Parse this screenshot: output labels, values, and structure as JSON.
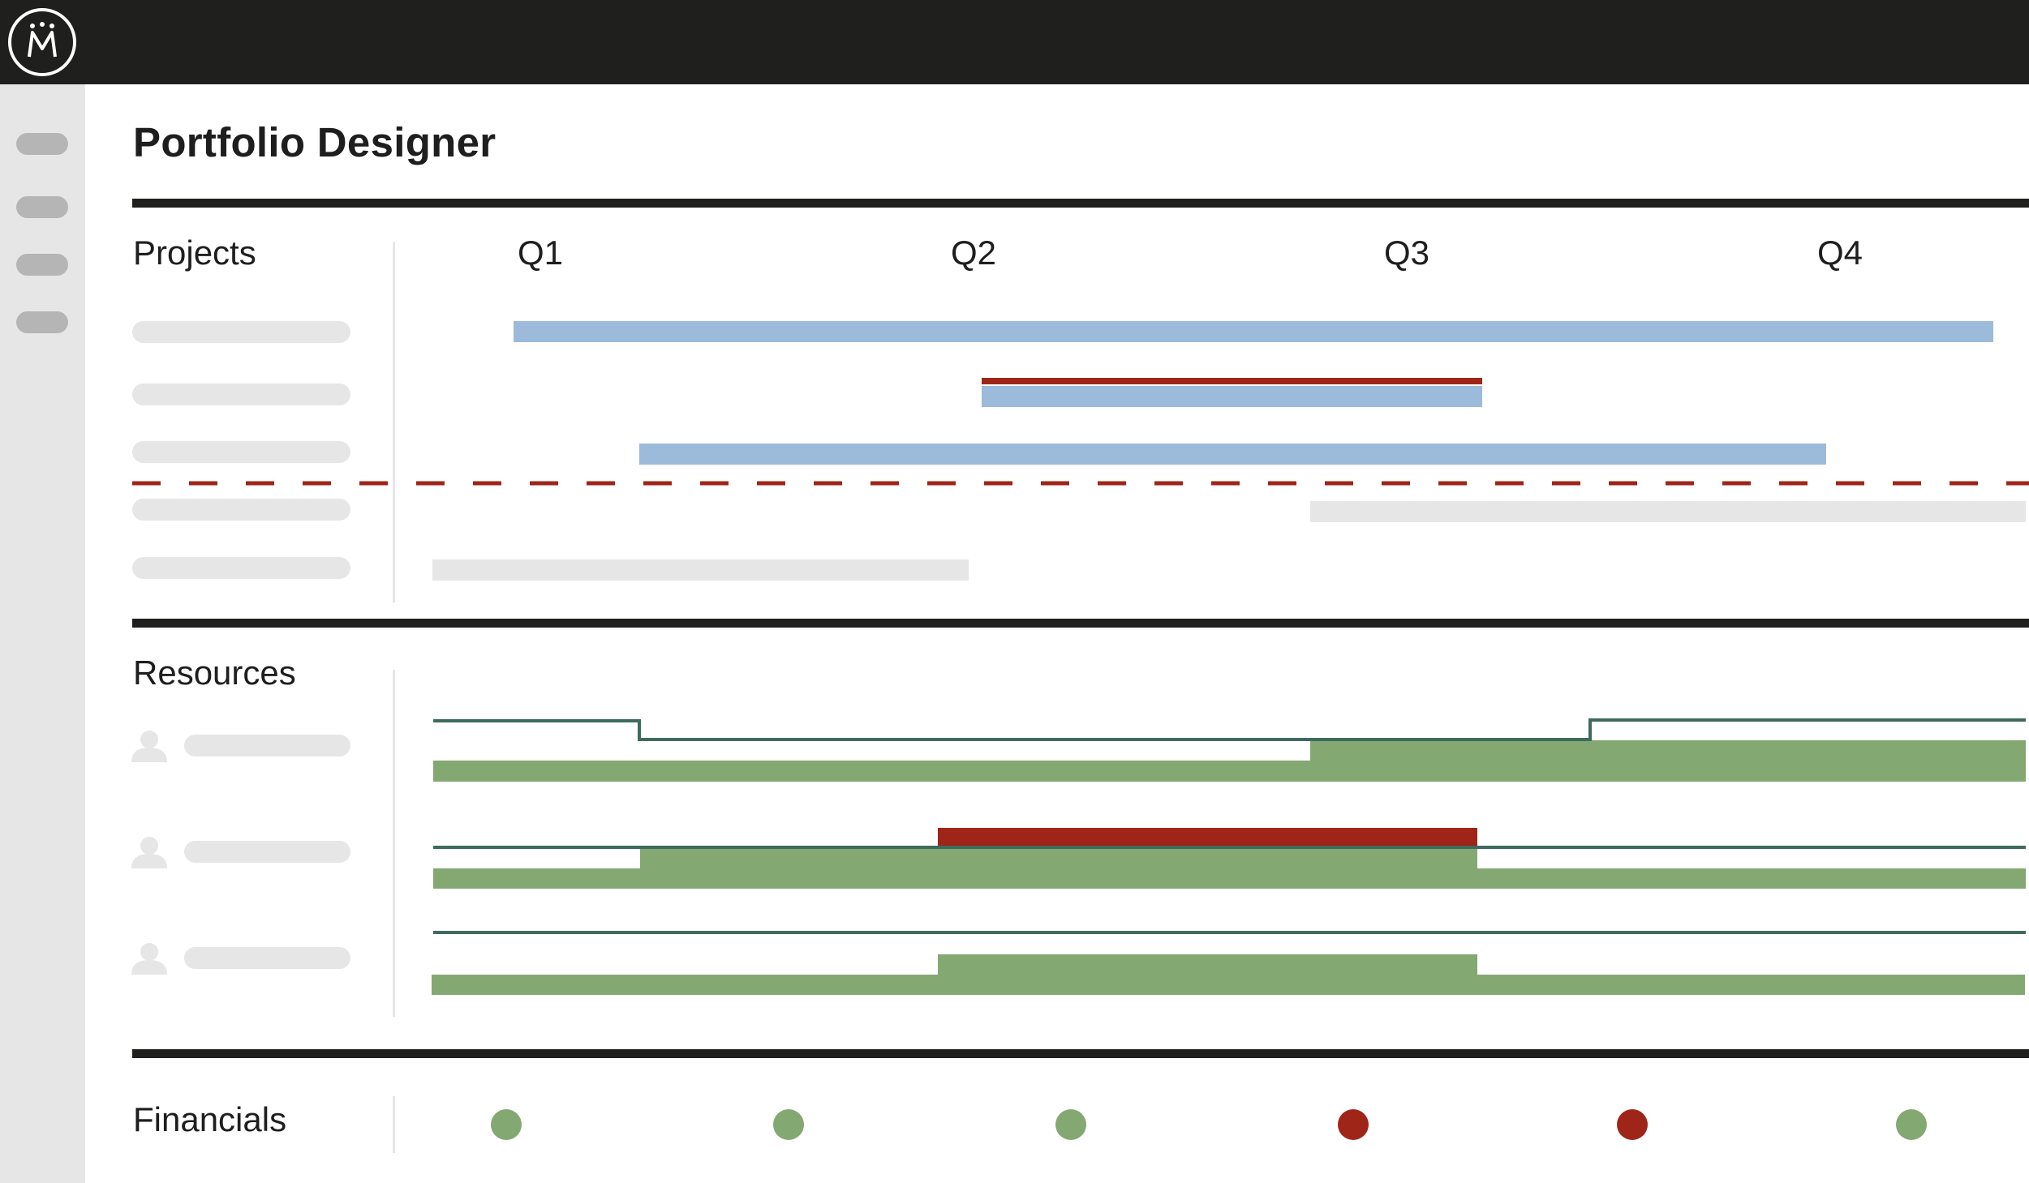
{
  "app": {
    "page_title": "Portfolio Designer",
    "logo_icon": "crown-logo-icon"
  },
  "sidebar": {
    "items": [
      {
        "icon": "nav-placeholder"
      },
      {
        "icon": "nav-placeholder"
      },
      {
        "icon": "nav-placeholder"
      },
      {
        "icon": "nav-placeholder"
      }
    ]
  },
  "sections": {
    "projects": "Projects",
    "resources": "Resources",
    "financials": "Financials"
  },
  "timeline": {
    "quarters": [
      "Q1",
      "Q2",
      "Q3",
      "Q4"
    ]
  },
  "colors": {
    "plan": "#9cbad9",
    "alert": "#9f2519",
    "inactive": "#e6e6e6",
    "allocation": "#84a872",
    "capacity": "#3d6b5e",
    "status_ok": "#84a872",
    "status_bad": "#9f2519"
  },
  "financials": {
    "statuses": [
      "ok",
      "ok",
      "ok",
      "bad",
      "bad",
      "ok"
    ]
  }
}
